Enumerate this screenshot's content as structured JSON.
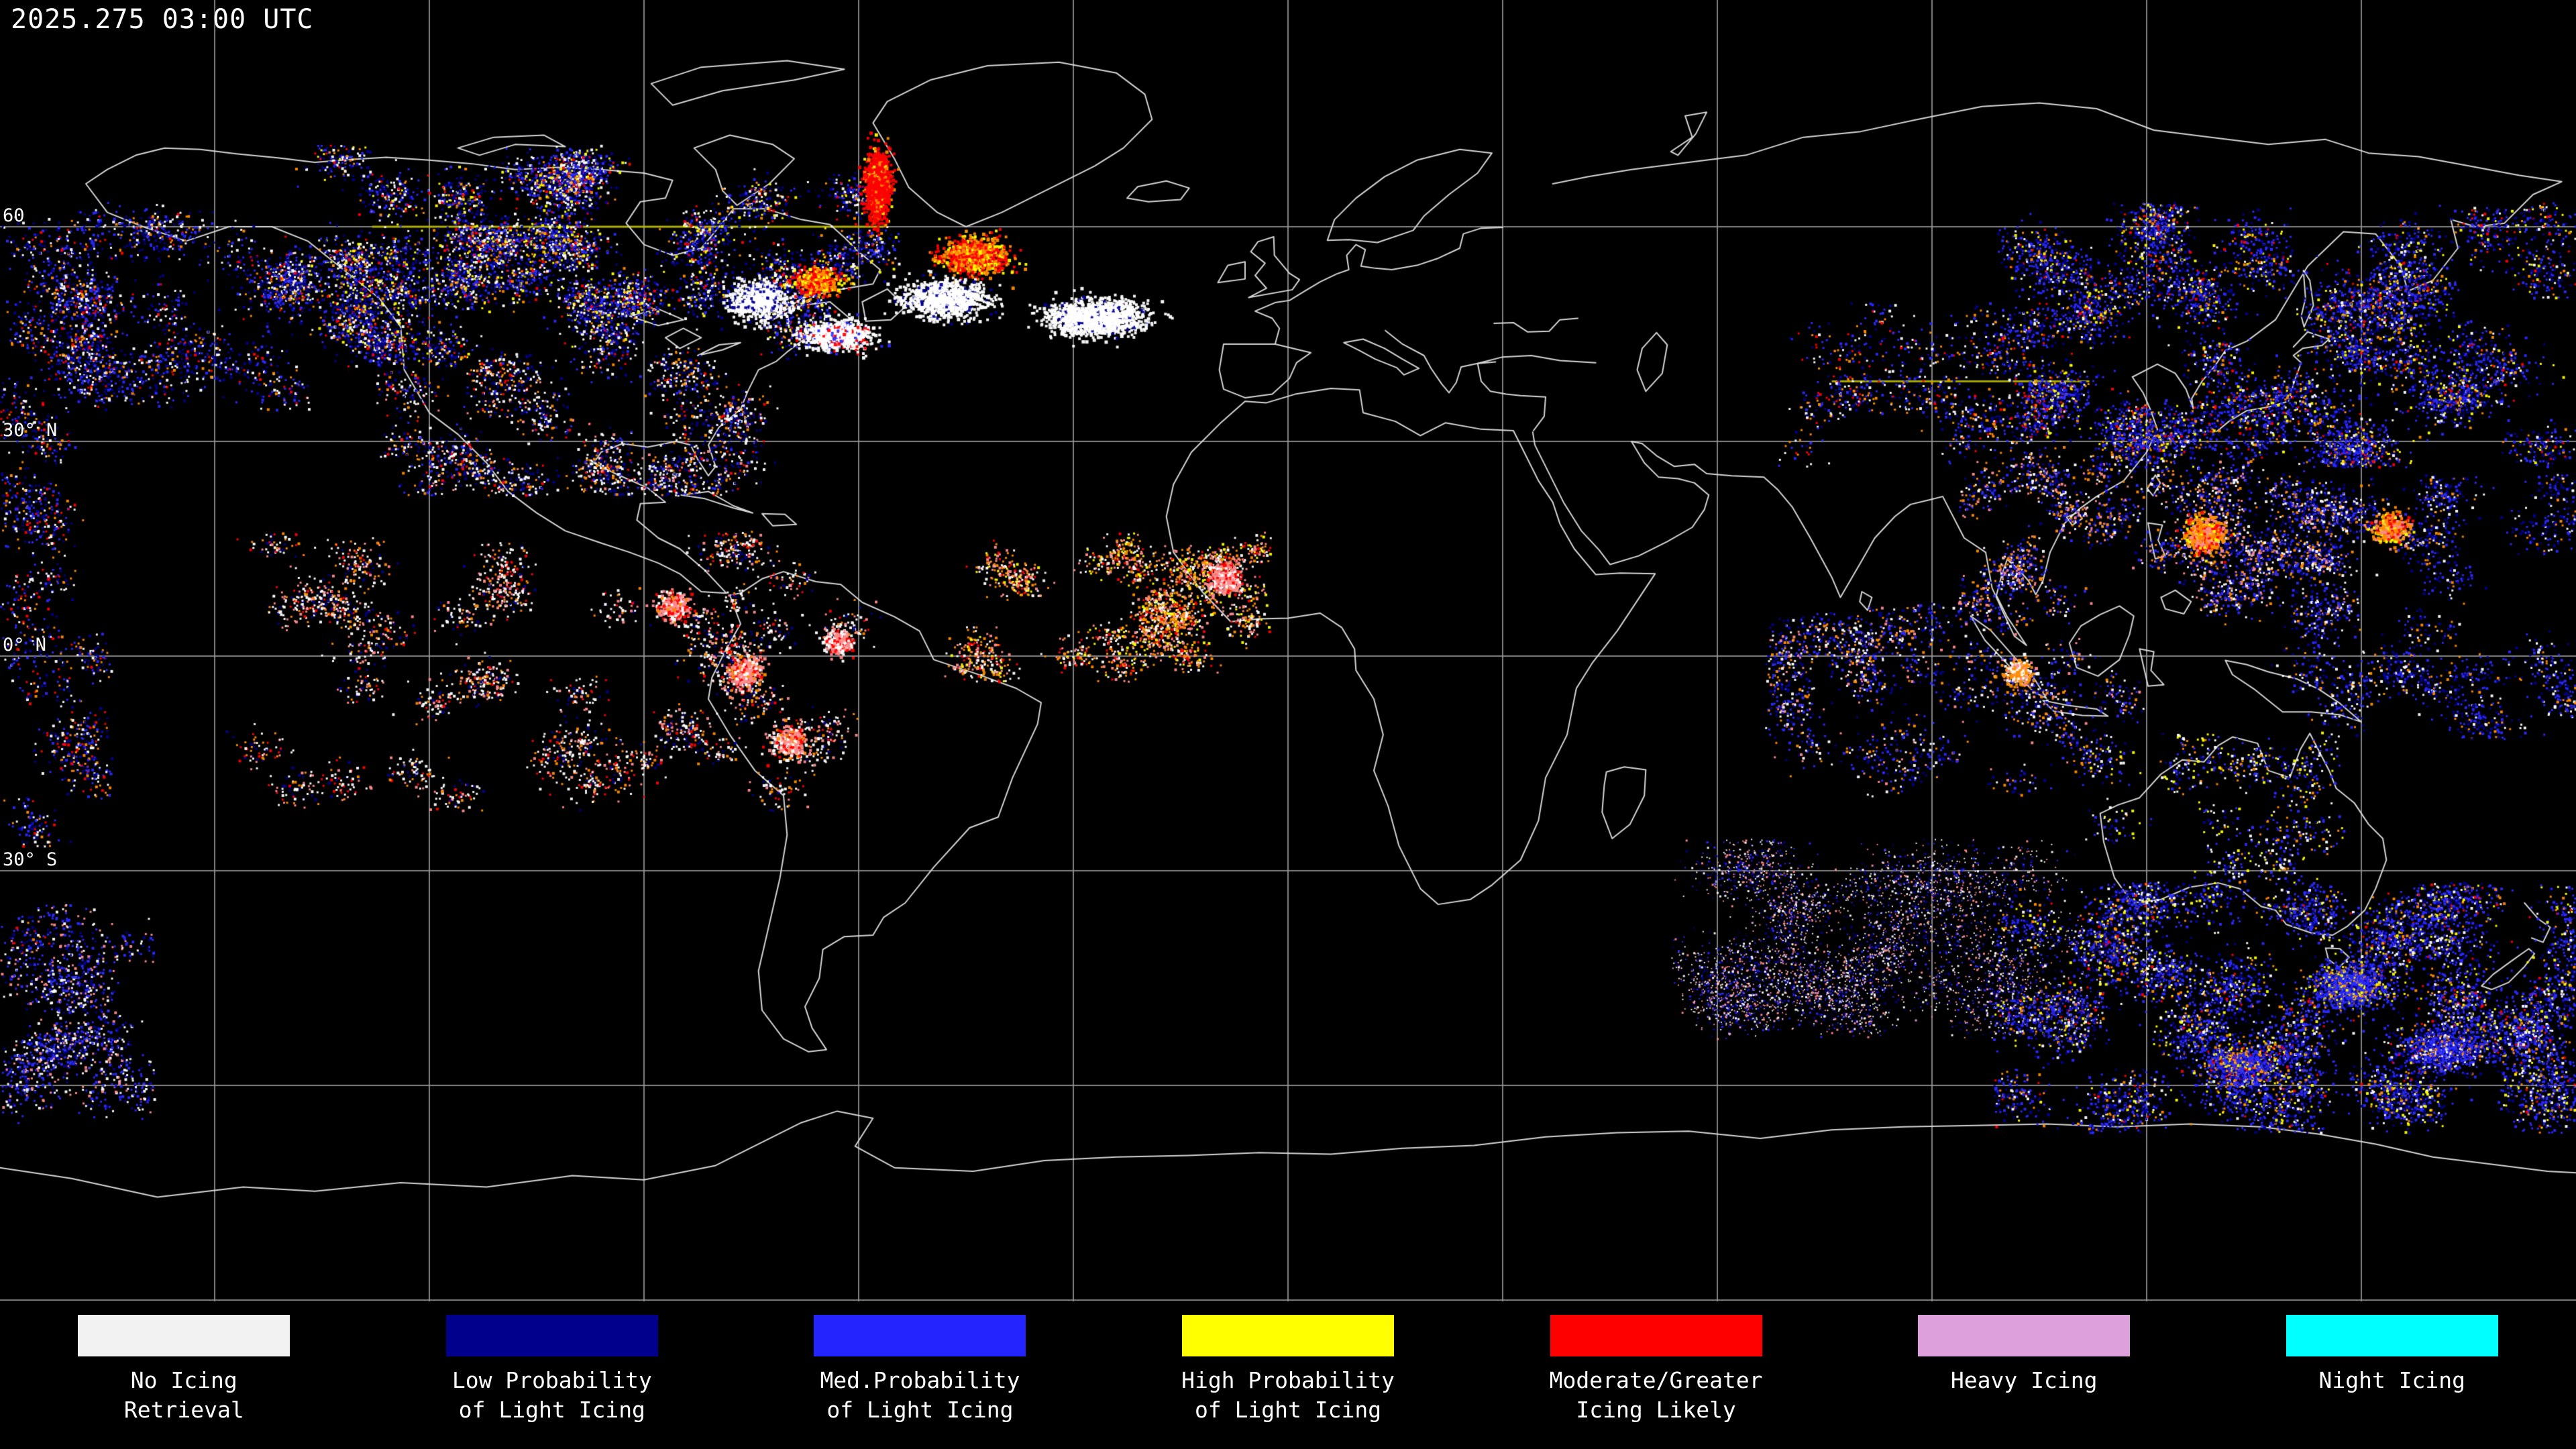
{
  "header": {
    "timestamp": "2025.275 03:00 UTC"
  },
  "map": {
    "background": "#000000",
    "grid_color": "#9a9a9a",
    "coast_color": "#e0e0e0",
    "lat_labels": [
      {
        "text": "60",
        "lat": 60
      },
      {
        "text": "30° N",
        "lat": 30
      },
      {
        "text": "0° N",
        "lat": 0
      },
      {
        "text": "30° S",
        "lat": -30
      }
    ]
  },
  "legend": {
    "items": [
      {
        "id": "no-icing-retrieval",
        "lines": [
          "No Icing",
          "Retrieval"
        ],
        "color": "#f2f2f2"
      },
      {
        "id": "low-prob-light-icing",
        "lines": [
          "Low Probability",
          "of Light Icing"
        ],
        "color": "#00008c"
      },
      {
        "id": "med-prob-light-icing",
        "lines": [
          "Med.Probability",
          "of Light Icing"
        ],
        "color": "#2424ff"
      },
      {
        "id": "high-prob-light-icing",
        "lines": [
          "High Probability",
          "of Light Icing"
        ],
        "color": "#ffff00"
      },
      {
        "id": "moderate-greater",
        "lines": [
          "Moderate/Greater",
          "Icing Likely"
        ],
        "color": "#ff0000"
      },
      {
        "id": "heavy-icing",
        "lines": [
          "Heavy Icing"
        ],
        "color": "#dda0dd"
      },
      {
        "id": "night-icing",
        "lines": [
          "Night Icing"
        ],
        "color": "#00ffff"
      }
    ]
  }
}
